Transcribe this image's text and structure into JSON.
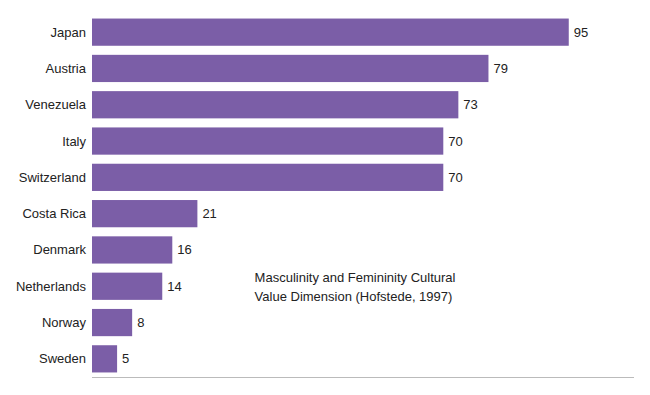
{
  "chart_data": {
    "type": "bar",
    "orientation": "horizontal",
    "categories": [
      "Japan",
      "Austria",
      "Venezuela",
      "Italy",
      "Switzerland",
      "Costa Rica",
      "Denmark",
      "Netherlands",
      "Norway",
      "Sweden"
    ],
    "values": [
      95,
      79,
      73,
      70,
      70,
      21,
      16,
      14,
      8,
      5
    ],
    "color": "#7B5EA7",
    "xlim": [
      0,
      108
    ],
    "annotation": "Masculinity and Femininity  Cultural\nValue Dimension (Hofstede, 1997)",
    "data_labels": true,
    "tick_labels": "y",
    "grid": false
  }
}
